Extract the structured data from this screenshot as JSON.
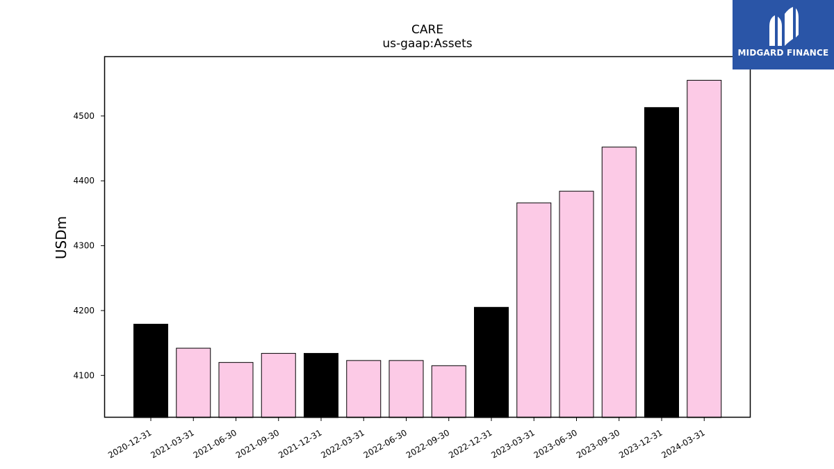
{
  "brand": {
    "name": "MIDGARD FINANCE",
    "background": "#2a55a7"
  },
  "chart_data": {
    "type": "bar",
    "title": "CARE",
    "subtitle": "us-gaap:Assets",
    "xlabel": "",
    "ylabel": "USDm",
    "categories": [
      "2020-12-31",
      "2021-03-31",
      "2021-06-30",
      "2021-09-30",
      "2021-12-31",
      "2022-03-31",
      "2022-06-30",
      "2022-09-30",
      "2022-12-31",
      "2023-03-31",
      "2023-06-30",
      "2023-09-30",
      "2023-12-31",
      "2024-03-31"
    ],
    "values": [
      4179,
      4142,
      4120,
      4134,
      4134,
      4123,
      4123,
      4115,
      4205,
      4366,
      4384,
      4452,
      4513,
      4555
    ],
    "bar_colors": [
      "#000000",
      "#fccae6",
      "#fccae6",
      "#fccae6",
      "#000000",
      "#fccae6",
      "#fccae6",
      "#fccae6",
      "#000000",
      "#fccae6",
      "#fccae6",
      "#fccae6",
      "#000000",
      "#fccae6"
    ],
    "ylim": [
      4035,
      4592
    ],
    "yticks": [
      4100,
      4200,
      4300,
      4400,
      4500
    ],
    "grid": false,
    "legend": "none"
  }
}
